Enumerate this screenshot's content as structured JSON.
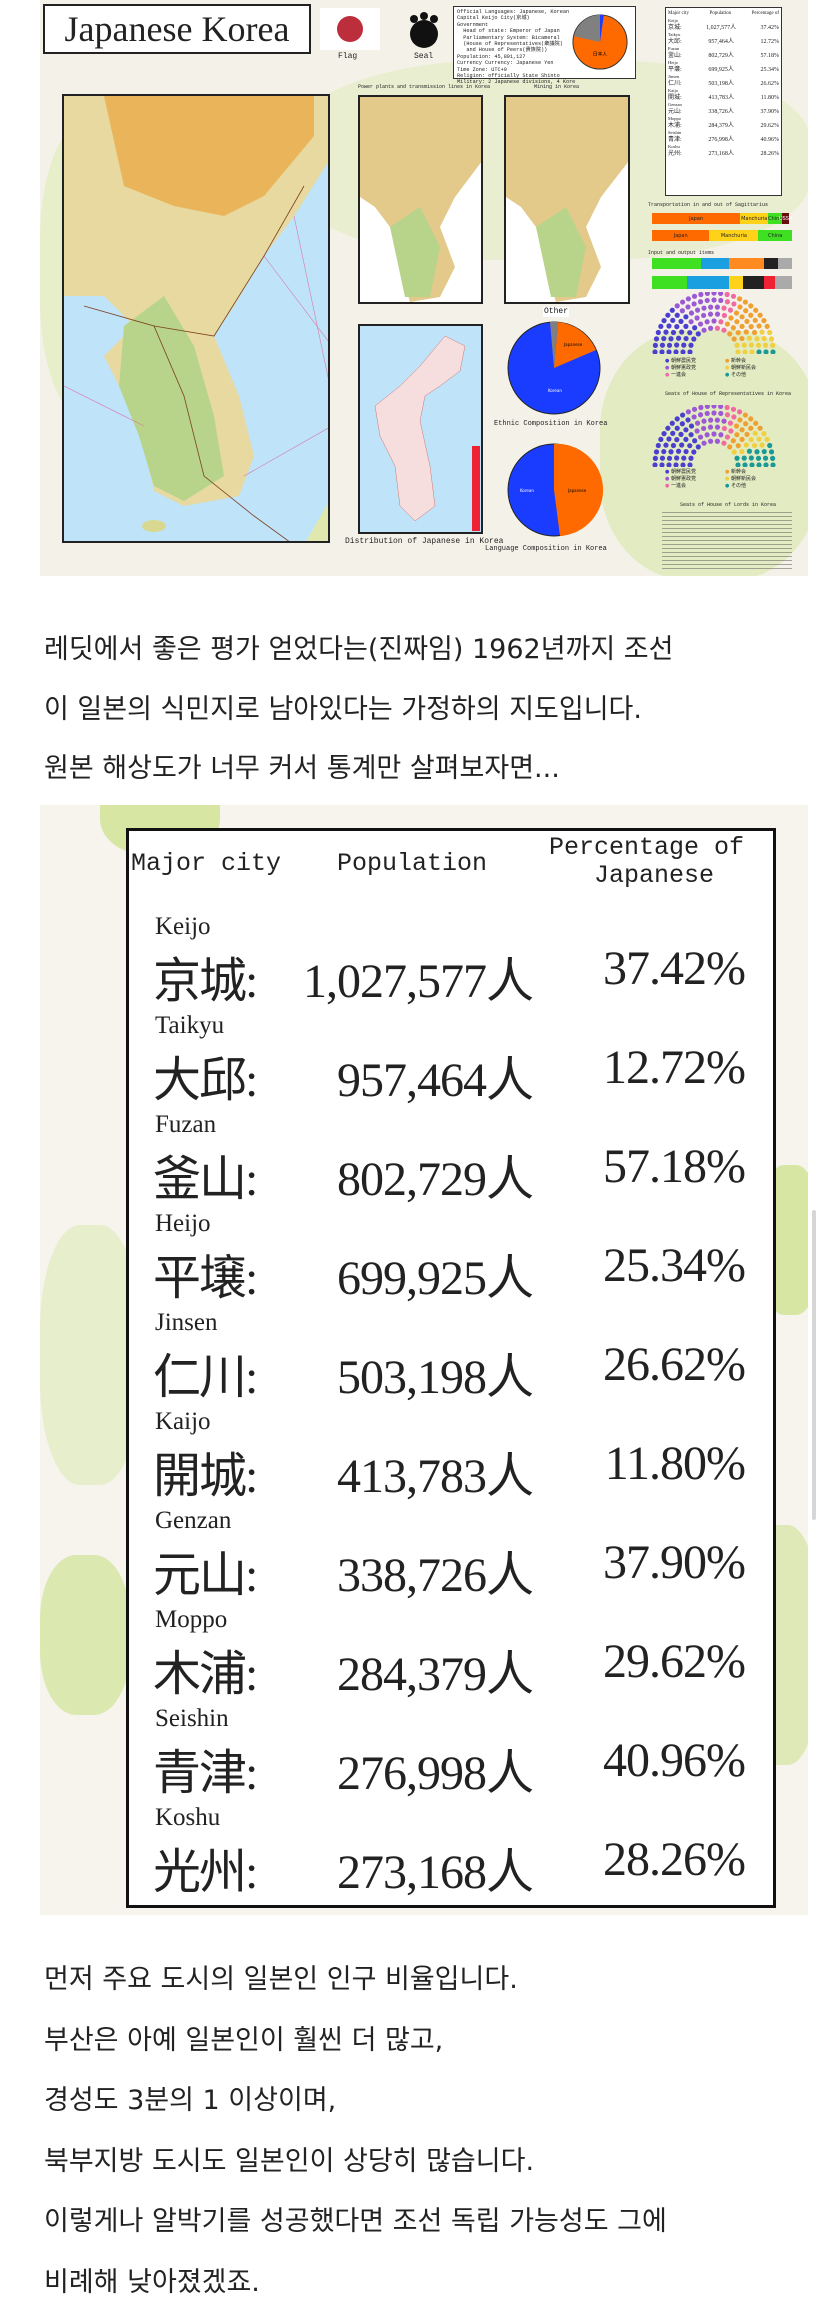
{
  "map_image": {
    "title": "Japanese Korea",
    "flag_label": "Flag",
    "seal_label": "Seal",
    "info_lines": [
      "Official Languages: Japanese, Korean",
      "Capital Keijo City(京城)",
      "Government",
      "  Head of state: Emperor of Japan",
      "  Parliamentary System: Bicameral",
      "  (House of Representatives(衆議院)",
      "   and House of Peers(貴族院))",
      "Population: 45,891,127",
      "Currency Currency: Japanese Yen",
      "Time Zone: UTC+9",
      "Religion: officially State Shinto",
      "Military: 2 Japanese divisions, 4 Korean divisions"
    ],
    "info_pie_label": "日本人",
    "power_caption": "Power plants and transmission lines in Korea",
    "mining_caption": "Mining in Korea",
    "distribution_caption": "Distribution of Japanese in Korea",
    "ethnic_caption": "Ethnic Composition in Korea",
    "ethnic_labels": {
      "other": "Other",
      "japanese": "Japanese",
      "korean": "Korean"
    },
    "language_caption": "Language Composition in Korea",
    "language_labels": {
      "korean": "Korean",
      "japanese": "Japanese"
    },
    "transport_caption": "Transportation in and out of Sagittarius",
    "transport_bars": [
      [
        {
          "label": "Japan",
          "share": 0.63,
          "color": "#ff6a00"
        },
        {
          "label": "Manchuria",
          "share": 0.2,
          "color": "#ffd21a"
        },
        {
          "label": "China",
          "share": 0.1,
          "color": "#3fe022"
        },
        {
          "label": "USSR",
          "share": 0.05,
          "color": "#6b0b0b"
        }
      ],
      [
        {
          "label": "Japan",
          "share": 0.41,
          "color": "#ff6a00"
        },
        {
          "label": "Manchuria",
          "share": 0.35,
          "color": "#ffd21a"
        },
        {
          "label": "China",
          "share": 0.24,
          "color": "#3fe022"
        }
      ]
    ],
    "io_caption": "Input and output items",
    "representatives_caption": "Seats of House of Representatives in Korea",
    "lords_caption": "Seats of House of Lords in Korea",
    "party_legend": [
      "朝鮮農民党",
      "朝鮮憲政党",
      "一進会",
      "新幹会",
      "朝鮮新民会",
      "その他"
    ],
    "party_colors": [
      "#4b3fd0",
      "#9b59d6",
      "#f06ba0",
      "#f0a030",
      "#f0d040",
      "#1a9a96"
    ],
    "colors": {
      "japanese": "#ff6a00",
      "korean": "#1a3cff",
      "other": "#7f7f7f",
      "sea": "#bfe3f8"
    }
  },
  "intro_text": [
    "레딧에서 좋은 평가 얻었다는(진짜임) 1962년까지 조선",
    "이 일본의 식민지로 남아있다는 가정하의 지도입니다.",
    "원본 해상도가 너무 커서 통계만 살펴보자면..."
  ],
  "city_table": {
    "headers": {
      "city": "Major city",
      "population": "Population",
      "percentage_line1": "Percentage of",
      "percentage_line2": "Japanese"
    },
    "rows": [
      {
        "romaji": "Keijo",
        "kanji": "京城:",
        "population": "1,027,577人",
        "percentage": "37.42%"
      },
      {
        "romaji": "Taikyu",
        "kanji": "大邱:",
        "population": "957,464人",
        "percentage": "12.72%"
      },
      {
        "romaji": "Fuzan",
        "kanji": "釜山:",
        "population": "802,729人",
        "percentage": "57.18%"
      },
      {
        "romaji": "Heijo",
        "kanji": "平壌:",
        "population": "699,925人",
        "percentage": "25.34%"
      },
      {
        "romaji": "Jinsen",
        "kanji": "仁川:",
        "population": "503,198人",
        "percentage": "26.62%"
      },
      {
        "romaji": "Kaijo",
        "kanji": "開城:",
        "population": "413,783人",
        "percentage": "11.80%"
      },
      {
        "romaji": "Genzan",
        "kanji": "元山:",
        "population": "338,726人",
        "percentage": "37.90%"
      },
      {
        "romaji": "Moppo",
        "kanji": "木浦:",
        "population": "284,379人",
        "percentage": "29.62%"
      },
      {
        "romaji": "Seishin",
        "kanji": "青津:",
        "population": "276,998人",
        "percentage": "40.96%"
      },
      {
        "romaji": "Koshu",
        "kanji": "光州:",
        "population": "273,168人",
        "percentage": "28.26%"
      }
    ]
  },
  "outro_text": [
    "먼저 주요 도시의 일본인 인구 비율입니다.",
    "부산은 아예 일본인이 훨씬 더 많고,",
    "경성도 3분의 1 이상이며,",
    "북부지방 도시도 일본인이 상당히 많습니다.",
    "이렇게나 알박기를 성공했다면 조선 독립 가능성도 그에",
    "비례해 낮아졌겠죠."
  ]
}
